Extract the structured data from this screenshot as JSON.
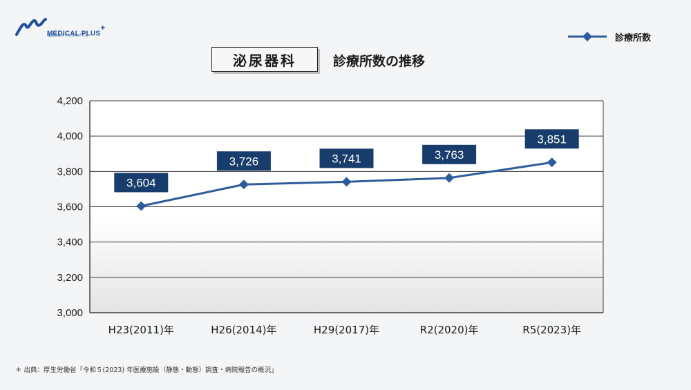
{
  "logo": {
    "name": "MEDICAL PLUS",
    "plus": "+",
    "sub": "株式会社メディカルプラス"
  },
  "header": {
    "title_box": "泌尿器科",
    "subtitle": "診療所数の推移"
  },
  "legend": {
    "label": "診療所数",
    "icon": "diamond-line-marker"
  },
  "colors": {
    "series": "#2d5c9c",
    "label_box": "#183c6b",
    "label_text": "#ffffff",
    "grid": "#3a3a3a"
  },
  "chart_data": {
    "type": "line",
    "title": "泌尿器科 診療所数の推移",
    "xlabel": "",
    "ylabel": "",
    "categories": [
      "H23(2011)年",
      "H26(2014)年",
      "H29(2017)年",
      "R2(2020)年",
      "R5(2023)年"
    ],
    "series": [
      {
        "name": "診療所数",
        "values": [
          3604,
          3726,
          3741,
          3763,
          3851
        ]
      }
    ],
    "data_labels": [
      "3,604",
      "3,726",
      "3,741",
      "3,763",
      "3,851"
    ],
    "ylim": [
      3000,
      4200
    ],
    "yticks": [
      3000,
      3200,
      3400,
      3600,
      3800,
      4000,
      4200
    ],
    "ytick_labels": [
      "3,000",
      "3,200",
      "3,400",
      "3,600",
      "3,800",
      "4,000",
      "4,200"
    ],
    "grid": true,
    "legend_position": "top-right"
  },
  "footnote": "＊ 出典：厚生労働省「令和５(2023) 年医療施設（静態・動態）調査・病院報告の概況」"
}
